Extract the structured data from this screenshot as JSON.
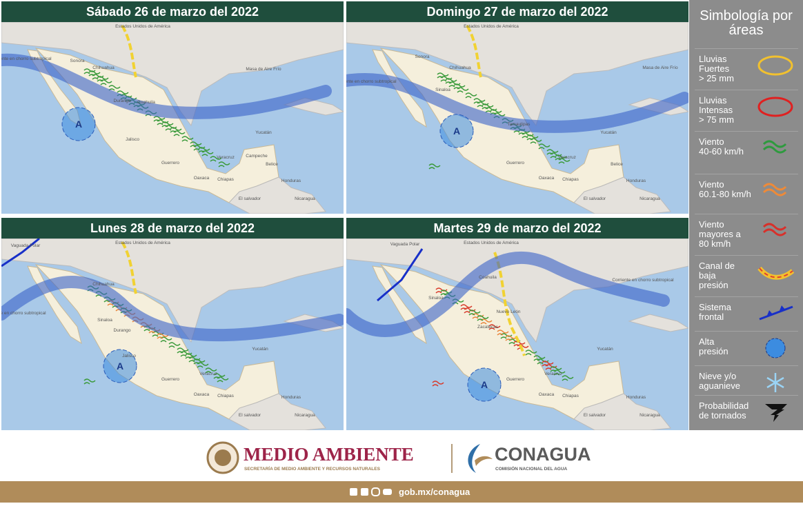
{
  "panels": [
    {
      "title": "Sábado 26 de marzo del 2022",
      "labels": [
        "Estados Unidos de América",
        "Sonora",
        "Chihuahua",
        "Coahuila",
        "Durango",
        "Jalisco",
        "Guerrero",
        "Oaxaca",
        "Chiapas",
        "Veracruz",
        "Yucatán",
        "Campeche",
        "Belice",
        "Honduras",
        "Nicaragua",
        "El salvador",
        "Masa de Aire Frío",
        "Corriente en chorro subtropical",
        "A"
      ]
    },
    {
      "title": "Domingo 27 de marzo del 2022",
      "labels": [
        "Estados Unidos de América",
        "Sonora",
        "Chihuahua",
        "Sinaloa",
        "Tamaulipas",
        "Guerrero",
        "Oaxaca",
        "Chiapas",
        "Veracruz",
        "Yucatán",
        "Belice",
        "Honduras",
        "Nicaragua",
        "El salvador",
        "Masa de Aire Frío",
        "Corriente en chorro subtropical",
        "A"
      ]
    },
    {
      "title": "Lunes 28 de marzo del 2022",
      "labels": [
        "Estados Unidos de América",
        "Vaguada Polar",
        "Chihuahua",
        "Sinaloa",
        "Durango",
        "Jalisco",
        "Guerrero",
        "Oaxaca",
        "Chiapas",
        "Veracruz",
        "Yucatán",
        "Honduras",
        "Nicaragua",
        "El salvador",
        "Corriente en chorro subtropical",
        "A"
      ]
    },
    {
      "title": "Martes 29 de marzo del 2022",
      "labels": [
        "Estados Unidos de América",
        "Vaguada Polar",
        "Coahuila",
        "Nuevo León",
        "Sinaloa",
        "Zacatecas",
        "Guerrero",
        "Oaxaca",
        "Chiapas",
        "Veracruz",
        "Yucatán",
        "Honduras",
        "Nicaragua",
        "El salvador",
        "Corriente en chorro subtropical",
        "A"
      ]
    }
  ],
  "legend": {
    "title": "Simbología por áreas",
    "items": [
      "Lluvias\nFuertes\n> 25 mm",
      "Lluvias\nIntensas\n> 75 mm",
      "Viento\n40-60 km/h",
      "Viento\n60.1-80 km/h",
      "Viento\nmayores a\n80 km/h",
      "Canal de\nbaja\npresión",
      "Sistema\nfrontal",
      "Alta\npresión",
      "Nieve y/o\naguanieve",
      "Probabilidad\nde tornados"
    ]
  },
  "footer": {
    "brand": "MEDIO AMBIENTE",
    "brand_sub": "SECRETARÍA DE MEDIO AMBIENTE Y RECURSOS NATURALES",
    "agency": "CONAGUA",
    "agency_sub": "COMISIÓN NACIONAL DEL AGUA",
    "link": "gob.mx/conagua"
  }
}
